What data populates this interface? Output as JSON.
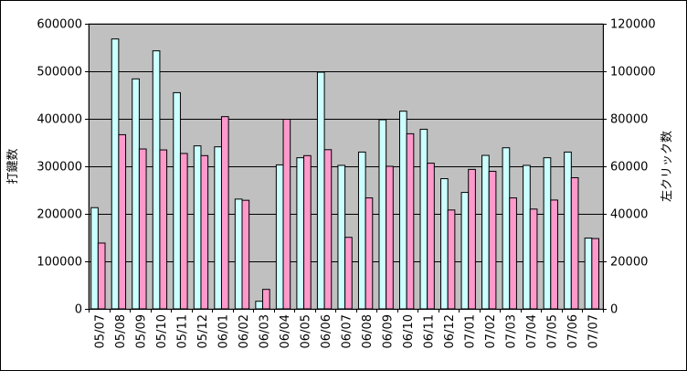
{
  "chart_data": {
    "type": "bar",
    "title": "",
    "xlabel": "",
    "ylabel_left": "打鍵数",
    "ylabel_right": "左クリック数",
    "y_left_lim": [
      0,
      600000
    ],
    "y_right_lim": [
      0,
      120000
    ],
    "y_left_ticks": [
      "0",
      "100000",
      "200000",
      "300000",
      "400000",
      "500000",
      "600000"
    ],
    "y_right_ticks": [
      "0",
      "20000",
      "40000",
      "60000",
      "80000",
      "100000",
      "120000"
    ],
    "grid": true,
    "legend": "none",
    "categories": [
      "05/07",
      "05/08",
      "05/09",
      "05/10",
      "05/11",
      "05/12",
      "06/01",
      "06/02",
      "06/03",
      "06/04",
      "06/05",
      "06/06",
      "06/07",
      "06/08",
      "06/09",
      "06/10",
      "06/11",
      "06/12",
      "07/01",
      "07/02",
      "07/03",
      "07/04",
      "07/05",
      "07/06",
      "07/07"
    ],
    "series": [
      {
        "axis": "left",
        "color": "#ccffff",
        "values": [
          213000,
          568000,
          484000,
          543000,
          455000,
          343000,
          341000,
          231000,
          16000,
          303000,
          318000,
          498000,
          302000,
          330000,
          398000,
          416000,
          378000,
          274000,
          245000,
          323000,
          339000,
          302000,
          318000,
          330000,
          149000
        ]
      },
      {
        "axis": "right",
        "color": "#ff99cc",
        "values": [
          27700,
          73300,
          67300,
          66900,
          65400,
          64500,
          80900,
          45700,
          8200,
          79800,
          64500,
          67000,
          30100,
          46700,
          60000,
          73700,
          61300,
          41600,
          58700,
          57900,
          46700,
          42000,
          45800,
          55200,
          29600
        ]
      }
    ]
  }
}
